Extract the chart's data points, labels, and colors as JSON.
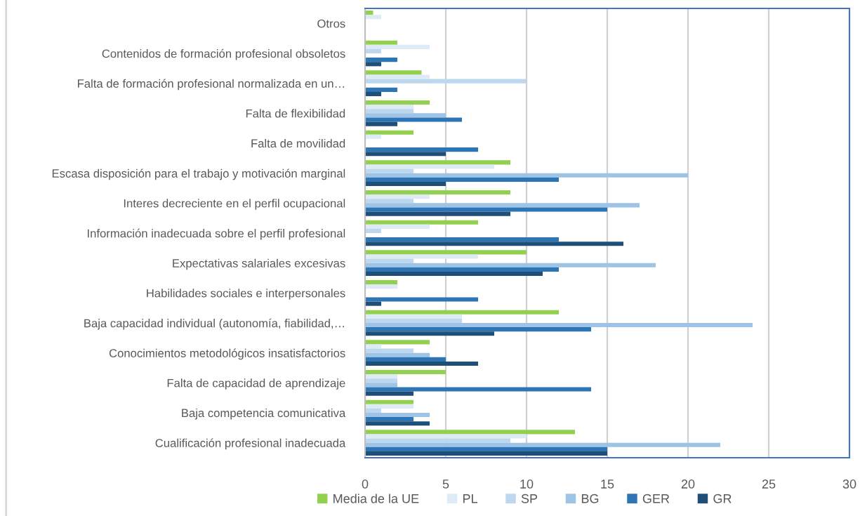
{
  "chart_data": {
    "type": "bar",
    "orientation": "horizontal",
    "categories": [
      "Otros",
      "Contenidos de formación profesional obsoletos",
      "Falta de formación profesional normalizada en un…",
      "Falta de flexibilidad",
      "Falta de movilidad",
      "Escasa disposición para el trabajo y motivación marginal",
      "Interes decreciente en el perfil ocupacional",
      "Información inadecuada sobre el perfil profesional",
      "Expectativas salariales excesivas",
      "Habilidades sociales e interpersonales",
      "Baja capacidad individual (autonomía, fiabilidad,…",
      "Conocimientos metodológicos insatisfactorios",
      "Falta de capacidad de aprendizaje",
      "Baja competencia comunicativa",
      "Cualificación profesional inadecuada"
    ],
    "series": [
      {
        "name": "Media de la UE",
        "color": "#92d050",
        "values": [
          0.5,
          2,
          3.5,
          4,
          3,
          9,
          9,
          7,
          10,
          2,
          12,
          4,
          5,
          3,
          13
        ]
      },
      {
        "name": "PL",
        "color": "#deebf7",
        "values": [
          1,
          4,
          4,
          3,
          1,
          8,
          4,
          4,
          7,
          2,
          6,
          1,
          2,
          3,
          10
        ]
      },
      {
        "name": "SP",
        "color": "#bdd7ee",
        "values": [
          0,
          1,
          10,
          3,
          0,
          3,
          3,
          1,
          3,
          0,
          6,
          3,
          2,
          1,
          9
        ]
      },
      {
        "name": "BG",
        "color": "#9dc3e6",
        "values": [
          0,
          0,
          0,
          5,
          0,
          20,
          17,
          0,
          18,
          0,
          24,
          4,
          2,
          4,
          22
        ]
      },
      {
        "name": "GER",
        "color": "#2e75b6",
        "values": [
          0,
          2,
          2,
          6,
          7,
          12,
          15,
          12,
          12,
          7,
          14,
          5,
          14,
          3,
          15
        ]
      },
      {
        "name": "GR",
        "color": "#1f4e79",
        "values": [
          0,
          1,
          1,
          2,
          5,
          5,
          9,
          16,
          11,
          1,
          8,
          7,
          3,
          4,
          15
        ]
      }
    ],
    "xlim": [
      0,
      30
    ],
    "xticks": [
      0,
      5,
      10,
      15,
      20,
      25,
      30
    ],
    "grid": "x",
    "legend": "bottom"
  }
}
